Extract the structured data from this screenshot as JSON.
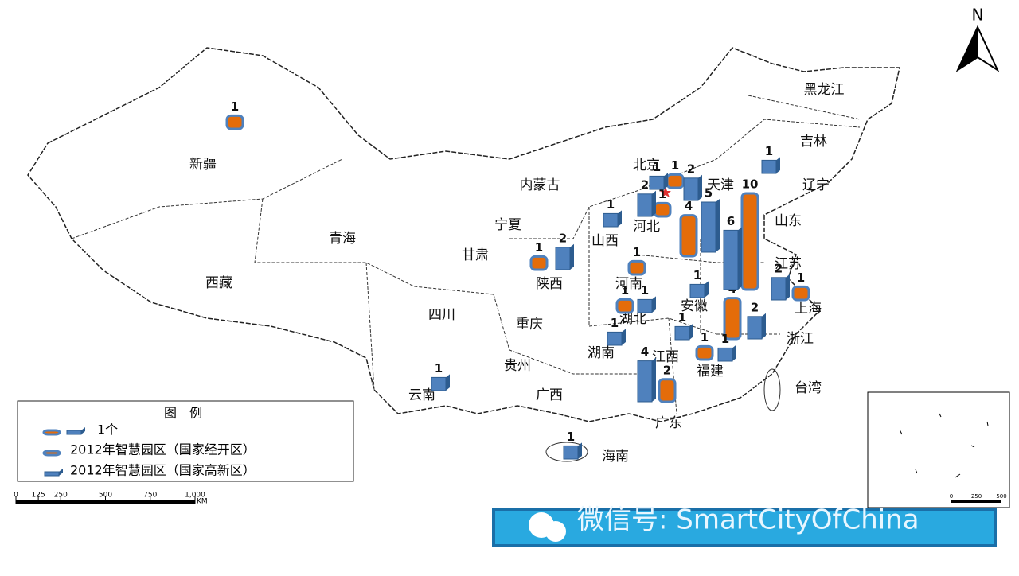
{
  "north": "N",
  "province_labels": [
    "新疆",
    "内蒙古",
    "北京",
    "天津",
    "辽宁",
    "吉林",
    "黑龙江",
    "河北",
    "山东",
    "山西",
    "宁夏",
    "甘肃",
    "青海",
    "西藏",
    "陕西",
    "河南",
    "江苏",
    "安徽",
    "上海",
    "四川",
    "重庆",
    "湖北",
    "湖南",
    "江西",
    "浙江",
    "福建",
    "贵州",
    "云南",
    "广西",
    "广东",
    "台湾",
    "海南"
  ],
  "legend": {
    "title": "图　例",
    "unit": "1个",
    "items": [
      {
        "label": "2012年智慧园区（国家经开区）",
        "color": "#e46c0a",
        "counts": [
          1,
          1,
          1,
          4,
          10,
          1,
          1,
          1,
          1,
          4,
          1,
          2
        ]
      },
      {
        "label": "2012年智慧园区（国家高新区）",
        "color": "#4f81bd",
        "counts": [
          1,
          2,
          1,
          2,
          5,
          6,
          1,
          2,
          2,
          1,
          1,
          2,
          1,
          1,
          1,
          4,
          1,
          1
        ]
      }
    ]
  },
  "scale": {
    "ticks": [
      0,
      125,
      250,
      500,
      750,
      {
        "value": 1000,
        "label": "1,000"
      }
    ],
    "unit": "KM"
  },
  "inset_scale": {
    "ticks": [
      0,
      250,
      500
    ]
  },
  "watermark": "微信号: SmartCityOfChina"
}
